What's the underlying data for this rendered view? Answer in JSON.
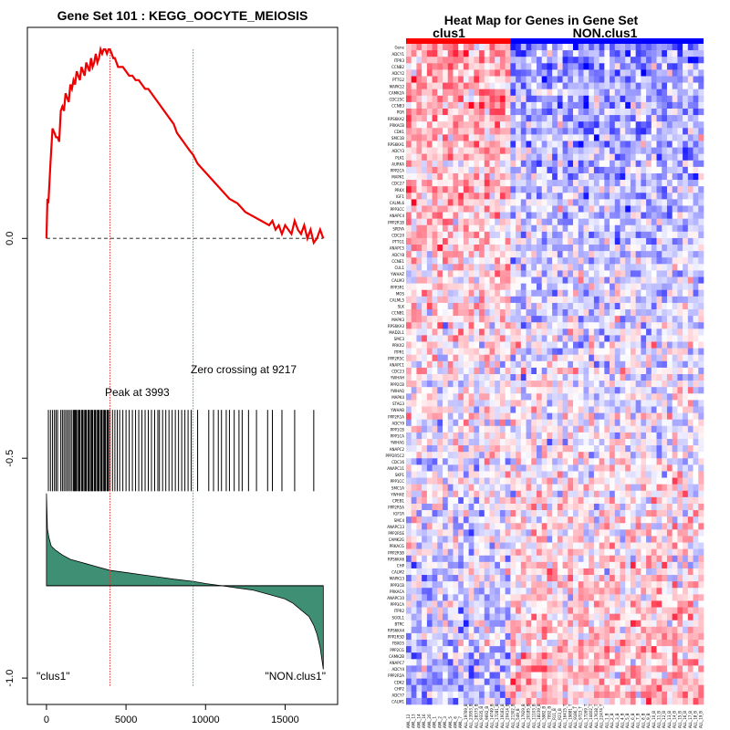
{
  "colors": {
    "es_line": "#ee0000",
    "peak_line": "#dd3333",
    "zero_line": "#33bb33",
    "baseline": "#555555",
    "ranked_fill": "#3f8f74",
    "hit_bar": "#000000",
    "clus1_bar": "#ff0000",
    "nonclus1_bar": "#0000ff"
  },
  "gsea": {
    "title": "Gene Set  101 : KEGG_OOCYTE_MEIOSIS",
    "peak_label": "Peak at 3993",
    "zero_label": "Zero crossing at 9217",
    "left_phenotype": "\"clus1\"",
    "right_phenotype": "\"NON.clus1\""
  },
  "heatmap": {
    "title": "Heat Map for Genes in Gene Set",
    "group1_label": "clus1",
    "group2_label": "NON.clus1",
    "group1_count": 20,
    "group2_count": 37,
    "sample_names": [
      "AML_12",
      "AML_13",
      "AML_14",
      "AML_16",
      "AML_20",
      "AML_1",
      "AML_2",
      "AML_3",
      "AML_5",
      "AML_6",
      "AML_7",
      "ALL_19769_B",
      "ALL_23953_B",
      "ALL_28373_B",
      "ALL_9335_B",
      "ALL_9692_B",
      "ALL_14749_B",
      "ALL_17281_B",
      "ALL_19183_B",
      "ALL_20414_B",
      "ALL_21302_B",
      "ALL_549_B",
      "ALL_17929_B",
      "ALL_20185_B",
      "ALL_11103_B",
      "ALL_18239_B",
      "ALL_5982_B",
      "ALL_7092_B",
      "ALL_R11_B",
      "ALL_R23_B",
      "ALL_16415_T",
      "ALL_19881_T",
      "ALL_9186_T",
      "ALL_9723_T",
      "ALL_17269_T",
      "ALL_14402_T",
      "ALL_17638_T",
      "ALL_22474_T",
      "ALL_1_B",
      "ALL_2_B",
      "ALL_3_B",
      "ALL_4_B",
      "ALL_5_B",
      "ALL_6_B",
      "ALL_7_B",
      "ALL_8_B",
      "ALL_9_B",
      "ALL_10_B",
      "ALL_11_B",
      "ALL_12_B",
      "ALL_13_B",
      "ALL_14_B",
      "ALL_15_B",
      "ALL_16_B",
      "ALL_17_B",
      "ALL_18_B",
      "ALL_19_B"
    ],
    "genes": [
      "Gene",
      "ADCY1",
      "ITPR3",
      "CCNB2",
      "ADCY2",
      "PTTG2",
      "MAPK12",
      "CAMK2A",
      "CDC25C",
      "CCNB3",
      "PGR",
      "RPS6KA2",
      "PRKACB",
      "CDK1",
      "SMC1B",
      "RPS6KA1",
      "ADCY3",
      "PLK1",
      "AURKA",
      "PPP2CA",
      "MAPK1",
      "CDC27",
      "PRKX",
      "IGF1",
      "CALML6",
      "PPP3CC",
      "ANAPC4",
      "PPP2R1B",
      "SPDYA",
      "CDC20",
      "PTTG1",
      "ANAPC5",
      "ADCY8",
      "CCNE1",
      "CUL1",
      "YWHAZ",
      "CALM3",
      "PPP3R1",
      "MOS",
      "CALML5",
      "SLK",
      "CCNB1",
      "MAPK3",
      "RPS6KA3",
      "MAD2L1",
      "SMC3",
      "PRKX2",
      "ITPR1",
      "PPP2R5C",
      "ANAPC1",
      "CDC23",
      "YWHAH",
      "PPP2CB",
      "YWHAQ",
      "MAPK4",
      "STAG3",
      "YWHAB",
      "PPP2R1A",
      "ADCY9",
      "PPP1CB",
      "PPP1CA",
      "YWHAG",
      "ANAPC2",
      "PPP2R5C2",
      "CDC16",
      "ANAPC11",
      "SKP1",
      "PPP1CC",
      "SMC1A",
      "YWHAE",
      "CPEB1",
      "PPP2R5A",
      "IGF1R",
      "SMC4",
      "ANAPC13",
      "PPP2R5E",
      "CAMK2G",
      "PRKACG",
      "PPP2R5B",
      "RPS6KA6",
      "CHP",
      "CALM2",
      "MAPK13",
      "PPP3CB",
      "PRKACA",
      "ANAPC10",
      "PPP3CA",
      "ITPR2",
      "SGOL1",
      "BTRC",
      "RPS6KA4",
      "PPP2R5D",
      "FBXO5",
      "PPP2CG",
      "CAMK2B",
      "ANAPC7",
      "ADCY4",
      "PPP2R2A",
      "CDK2",
      "CHP2",
      "ADCY7",
      "CALM1"
    ]
  },
  "chart_data": [
    {
      "type": "line",
      "title": "Gene Set  101 : KEGG_OOCYTE_MEIOSIS",
      "xlabel": "",
      "ylabel": "",
      "xlim": [
        -1200,
        18300
      ],
      "ylim": [
        -1.06,
        0.48
      ],
      "xticks": [
        0,
        5000,
        10000,
        15000
      ],
      "yticks": [
        0.0,
        -0.5,
        -1.0
      ],
      "xtick_labels": [
        "0",
        "5000",
        "10000",
        "15000"
      ],
      "ytick_labels": [
        "0.0",
        "-0.5",
        "-1.0"
      ],
      "series": [
        {
          "name": "running enrichment score",
          "x": [
            0,
            60,
            120,
            250,
            380,
            500,
            600,
            700,
            800,
            900,
            1000,
            1100,
            1200,
            1300,
            1400,
            1500,
            1600,
            1700,
            1800,
            1900,
            2000,
            2100,
            2200,
            2300,
            2400,
            2500,
            2600,
            2700,
            2800,
            2900,
            3000,
            3100,
            3200,
            3300,
            3400,
            3500,
            3600,
            3700,
            3800,
            3900,
            3993,
            4100,
            4200,
            4300,
            4400,
            4500,
            4600,
            4800,
            5000,
            5200,
            5400,
            5600,
            5800,
            6000,
            6200,
            6400,
            6600,
            6800,
            7000,
            7200,
            7400,
            7600,
            7800,
            8000,
            8200,
            8400,
            8600,
            8800,
            9000,
            9217,
            9500,
            10000,
            10500,
            11000,
            11500,
            12000,
            12500,
            13000,
            13500,
            14000,
            14200,
            14400,
            14600,
            14800,
            15000,
            15200,
            15400,
            15600,
            15800,
            16000,
            16200,
            16400,
            16600,
            16800,
            17000,
            17200,
            17400
          ],
          "y": [
            0.0,
            0.09,
            0.08,
            0.17,
            0.25,
            0.24,
            0.23,
            0.23,
            0.22,
            0.29,
            0.3,
            0.29,
            0.33,
            0.32,
            0.31,
            0.35,
            0.34,
            0.36,
            0.35,
            0.38,
            0.37,
            0.36,
            0.39,
            0.38,
            0.37,
            0.4,
            0.39,
            0.38,
            0.41,
            0.39,
            0.4,
            0.42,
            0.4,
            0.41,
            0.43,
            0.42,
            0.43,
            0.43,
            0.42,
            0.43,
            0.43,
            0.42,
            0.41,
            0.41,
            0.4,
            0.39,
            0.39,
            0.39,
            0.38,
            0.37,
            0.37,
            0.36,
            0.36,
            0.35,
            0.34,
            0.34,
            0.33,
            0.32,
            0.31,
            0.3,
            0.29,
            0.28,
            0.27,
            0.26,
            0.24,
            0.23,
            0.22,
            0.21,
            0.2,
            0.19,
            0.17,
            0.15,
            0.13,
            0.11,
            0.09,
            0.08,
            0.06,
            0.05,
            0.04,
            0.03,
            0.04,
            0.02,
            0.03,
            0.01,
            0.03,
            0.02,
            0.01,
            0.04,
            0.02,
            0.01,
            0.03,
            0.0,
            0.02,
            -0.01,
            0.0,
            0.02,
            0.0
          ]
        },
        {
          "name": "ranked list metric",
          "x": [
            0,
            60,
            150,
            300,
            600,
            1000,
            1500,
            2000,
            2500,
            3000,
            3993,
            5000,
            6000,
            7000,
            8000,
            9217,
            10000,
            11000,
            12000,
            13000,
            14000,
            15000,
            15500,
            16000,
            16500,
            16800,
            17000,
            17200,
            17400
          ],
          "y": [
            -0.58,
            -0.66,
            -0.68,
            -0.7,
            -0.71,
            -0.72,
            -0.73,
            -0.735,
            -0.74,
            -0.745,
            -0.755,
            -0.76,
            -0.765,
            -0.77,
            -0.775,
            -0.78,
            -0.785,
            -0.79,
            -0.795,
            -0.8,
            -0.81,
            -0.82,
            -0.83,
            -0.845,
            -0.86,
            -0.88,
            -0.9,
            -0.93,
            -0.98
          ]
        }
      ],
      "hits": [
        120,
        250,
        380,
        500,
        600,
        700,
        900,
        1000,
        1100,
        1200,
        1300,
        1400,
        1500,
        1600,
        1700,
        1750,
        1800,
        1850,
        1900,
        2000,
        2050,
        2100,
        2200,
        2250,
        2300,
        2400,
        2450,
        2500,
        2600,
        2650,
        2700,
        2800,
        2850,
        2900,
        3000,
        3050,
        3100,
        3200,
        3250,
        3300,
        3400,
        3450,
        3500,
        3600,
        3650,
        3700,
        3800,
        3850,
        3900,
        3993,
        4150,
        4300,
        4450,
        4600,
        4800,
        5000,
        5200,
        5400,
        5600,
        5800,
        6000,
        6200,
        6400,
        6600,
        6800,
        7000,
        7100,
        7300,
        7500,
        7700,
        7900,
        8100,
        8300,
        8500,
        8700,
        8900,
        9100,
        9500,
        10200,
        10500,
        10800,
        11000,
        11300,
        11500,
        11800,
        12100,
        12300,
        12700,
        13200,
        13900,
        14200,
        14800,
        15600,
        16800
      ],
      "peak_x": 3993,
      "zero_crossing_x": 9217,
      "metric_baseline_y": -0.79
    },
    {
      "type": "heatmap",
      "title": "Heat Map for Genes in Gene Set",
      "rows": 101,
      "columns": 57,
      "column_groups": [
        {
          "name": "clus1",
          "count": 20
        },
        {
          "name": "NON.clus1",
          "count": 37
        }
      ],
      "color_scale": [
        "#0000ff",
        "#ffffff",
        "#ff0000"
      ],
      "value_range": [
        -3,
        3
      ]
    }
  ]
}
